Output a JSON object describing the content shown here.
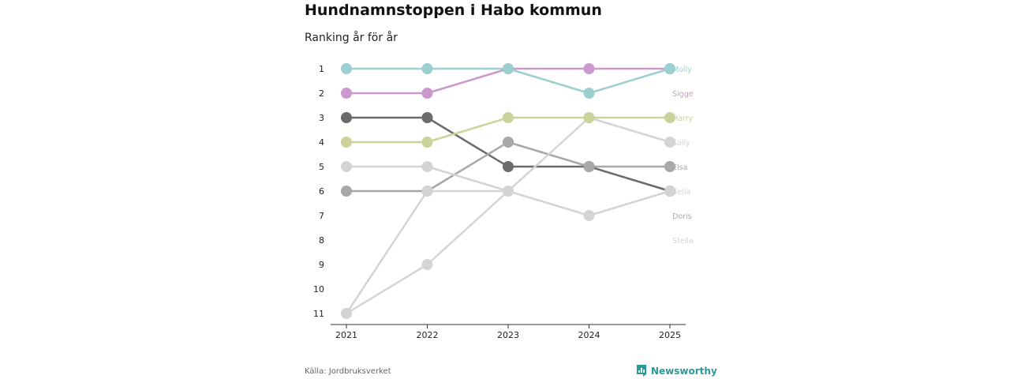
{
  "header": {
    "title": "Hundnamnstoppen i Habo kommun",
    "subtitle": "Ranking år för år"
  },
  "footer": {
    "source": "Källa: Jordbruksverket",
    "brand": "Newsworthy"
  },
  "colors": {
    "teal": "#9ccfcf",
    "purple": "#cc99cc",
    "olive": "#cdd29a",
    "light_gray": "#d4d4d4",
    "mid_gray": "#a8a8a8",
    "dark_gray": "#6b6b6b",
    "brand": "#2a9a96"
  },
  "chart_data": {
    "type": "line",
    "subtype": "bump",
    "title": "Hundnamnstoppen i Habo kommun",
    "subtitle": "Ranking år för år",
    "categories": [
      "2021",
      "2022",
      "2023",
      "2024",
      "2025"
    ],
    "y_ticks": [
      "1",
      "2",
      "3",
      "4",
      "5",
      "6",
      "7",
      "8",
      "9",
      "10",
      "11"
    ],
    "ylim": [
      1,
      11
    ],
    "y_inverted": true,
    "series": [
      {
        "name": "Bella",
        "color": "#6b6b6b",
        "values": [
          3,
          3,
          5,
          5,
          6
        ]
      },
      {
        "name": "Elsa",
        "color": "#a8a8a8",
        "values": [
          6,
          6,
          4,
          5,
          5
        ]
      },
      {
        "name": "Sally",
        "color": "#d4d4d4",
        "values": [
          11,
          6,
          6,
          3,
          4
        ]
      },
      {
        "name": "Doris",
        "color": "#d4d4d4",
        "values": [
          5,
          5,
          6,
          7,
          6
        ]
      },
      {
        "name": "Stella",
        "color": "#d4d4d4",
        "values": [
          11,
          9,
          6,
          null,
          null
        ]
      },
      {
        "name": "Harry",
        "color": "#cdd29a",
        "values": [
          4,
          4,
          3,
          3,
          3
        ]
      },
      {
        "name": "Sigge",
        "color": "#cc99cc",
        "values": [
          2,
          2,
          1,
          1,
          1
        ]
      },
      {
        "name": "Molly",
        "color": "#9ccfcf",
        "values": [
          1,
          1,
          1,
          2,
          1
        ]
      }
    ],
    "end_labels": [
      {
        "name": "Molly",
        "rank": 1,
        "color": "#9ccfcf"
      },
      {
        "name": "Sigge",
        "rank": 2,
        "color": "#cc99cc"
      },
      {
        "name": "Harry",
        "rank": 3,
        "color": "#cdd29a"
      },
      {
        "name": "Sally",
        "rank": 4,
        "color": "#d4d4d4"
      },
      {
        "name": "Elsa",
        "rank": 5,
        "color": "#a8a8a8"
      },
      {
        "name": "Bella",
        "rank": 6,
        "color": "#d4d4d4"
      },
      {
        "name": "Doris",
        "rank": 7,
        "color": "#a8a8a8"
      },
      {
        "name": "Stella",
        "rank": 8,
        "color": "#d4d4d4"
      }
    ]
  }
}
